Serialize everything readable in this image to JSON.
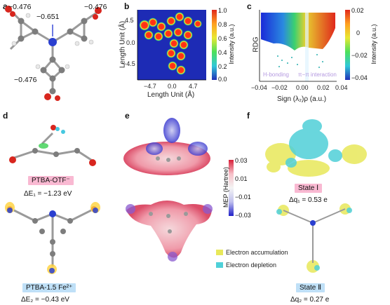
{
  "panels": {
    "a": "a",
    "b": "b",
    "c": "c",
    "d": "d",
    "e": "e",
    "f": "f"
  },
  "panel_a": {
    "charges": [
      "−0.476",
      "−0.651",
      "−0.476",
      "−0.476"
    ]
  },
  "panel_b": {
    "ylabel": "Length Unit (Å)",
    "xlabel": "Length Unit (Å)",
    "yticks": [
      "4.5",
      "0.0",
      "−4.5"
    ],
    "xticks": [
      "−4.7",
      "0.0",
      "4.7"
    ],
    "cbar_label": "Intensity (a.u.)",
    "cbar_ticks": [
      "1.0",
      "0.8",
      "0.6",
      "0.4",
      "0.2",
      "0.0"
    ]
  },
  "panel_c": {
    "ylabel": "RDG",
    "xlabel": "Sign (λ₂)ρ (a.u.)",
    "xticks": [
      "−0.04",
      "−0.02",
      "0.00",
      "0.02",
      "0.04"
    ],
    "annot_h": "H-bonding",
    "annot_pi": "π−π interaction",
    "cbar_label": "Intensity (a.u.)",
    "cbar_ticks": [
      "0.02",
      "0",
      "−0.02",
      "−0.04"
    ]
  },
  "panel_d": {
    "label1": "PTBA-OTF⁻",
    "eq1": "ΔE₁ = −1.23 eV",
    "label2": "PTBA-1.5 Fe²⁺",
    "eq2": "ΔE₂ = −0.43 eV"
  },
  "panel_e": {
    "cbar_label": "MEP (Hartree)",
    "cbar_ticks": [
      "0.03",
      "0.01",
      "−0.01",
      "−0.03"
    ]
  },
  "panel_f": {
    "state1": "State Ⅰ",
    "q1": "Δq₁ = 0.53 e",
    "state2": "State Ⅱ",
    "q2": "Δq₂ = 0.27 e",
    "legend_acc": "Electron accumulation",
    "legend_dep": "Electron depletion"
  },
  "colors": {
    "accumulation": "#e8e85a",
    "depletion": "#4fd0d8",
    "pink": "#f9b9d2",
    "blue": "#bfe0f7"
  }
}
